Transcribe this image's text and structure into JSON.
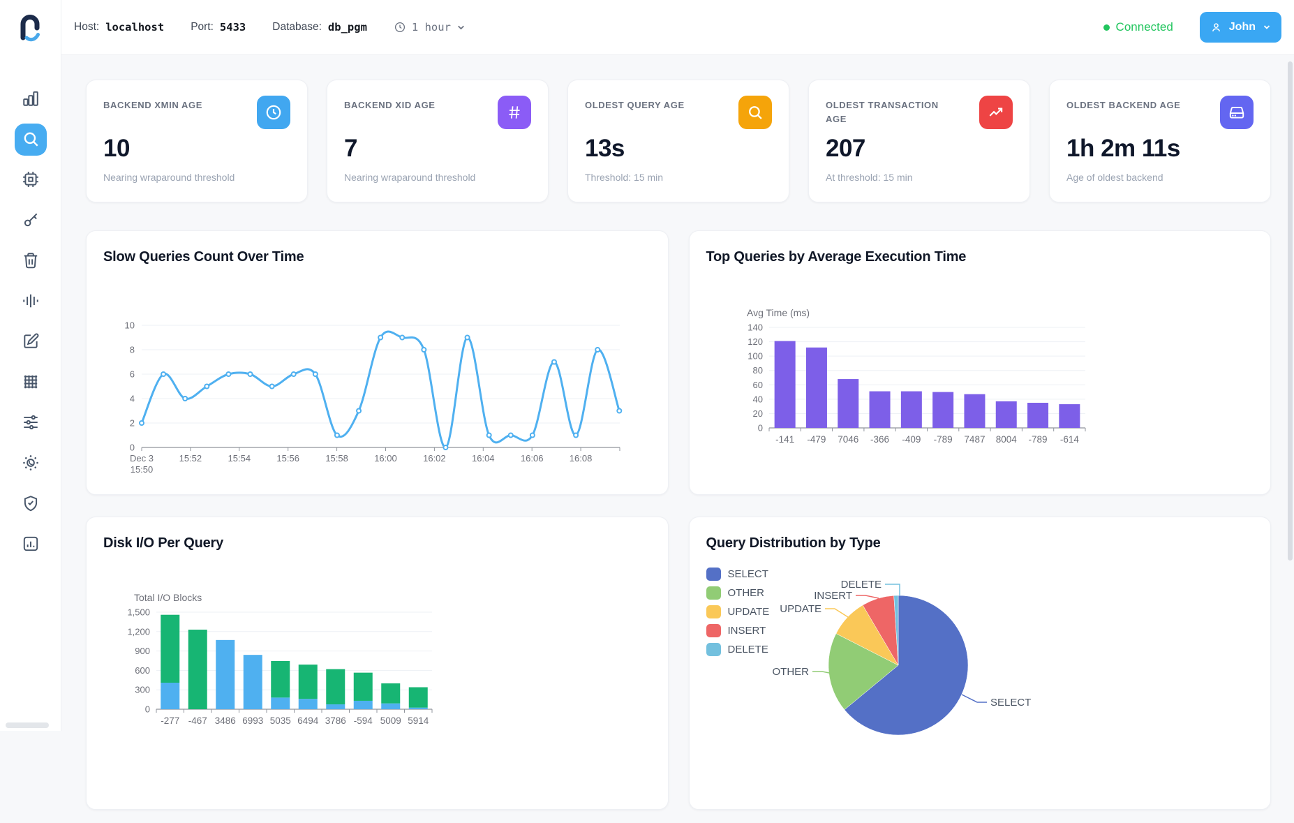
{
  "header": {
    "host_label": "Host:",
    "host_value": "localhost",
    "port_label": "Port:",
    "port_value": "5433",
    "db_label": "Database:",
    "db_value": "db_pgm",
    "time_range": "1 hour",
    "status": "Connected",
    "user": "John"
  },
  "sidebar": {
    "items": [
      {
        "icon": "bar-chart-icon"
      },
      {
        "icon": "search-icon",
        "active": true
      },
      {
        "icon": "cpu-icon"
      },
      {
        "icon": "key-icon"
      },
      {
        "icon": "trash-icon"
      },
      {
        "icon": "audio-lines-icon"
      },
      {
        "icon": "edit-icon"
      },
      {
        "icon": "grid-icon"
      },
      {
        "icon": "sliders-icon"
      },
      {
        "icon": "sun-icon"
      },
      {
        "icon": "shield-check-icon"
      },
      {
        "icon": "chart-square-icon"
      }
    ]
  },
  "stats": {
    "items": [
      {
        "label": "BACKEND XMIN AGE",
        "value": "10",
        "subtitle": "Nearing wraparound threshold",
        "icon": "clock-icon",
        "color": "#41a7f0"
      },
      {
        "label": "BACKEND XID AGE",
        "value": "7",
        "subtitle": "Nearing wraparound threshold",
        "icon": "hash-icon",
        "color": "#8b5cf6"
      },
      {
        "label": "OLDEST QUERY AGE",
        "value": "13s",
        "subtitle": "Threshold: 15 min",
        "icon": "search-icon",
        "color": "#f5a40a"
      },
      {
        "label": "OLDEST TRANSACTION AGE",
        "value": "207",
        "subtitle": "At threshold: 15 min",
        "icon": "trending-up-icon",
        "color": "#ee4444"
      },
      {
        "label": "OLDEST BACKEND AGE",
        "value": "1h 2m 11s",
        "subtitle": "Age of oldest backend",
        "icon": "hard-drive-icon",
        "color": "#6366f1"
      }
    ]
  },
  "chart_data": [
    {
      "type": "line",
      "title": "Slow Queries Count Over Time",
      "series_color": "#4FB0F0",
      "ylim": [
        0,
        10
      ],
      "yticks": [
        0,
        2,
        4,
        6,
        8,
        10
      ],
      "x_tick_labels": [
        "Dec 3\n15:50",
        "15:52",
        "15:54",
        "15:56",
        "15:58",
        "16:00",
        "16:02",
        "16:04",
        "16:06",
        "16:08"
      ],
      "x_tick_minutes": [
        0,
        2,
        4,
        6,
        8,
        10,
        12,
        14,
        16,
        18
      ],
      "x_range_minutes": [
        0,
        19.6
      ],
      "x_step_minutes": 0.89,
      "values": [
        2,
        6,
        4,
        5,
        6,
        6,
        5,
        6,
        6,
        1,
        3,
        9,
        9,
        8,
        0,
        9,
        1,
        1,
        1,
        7,
        1,
        8,
        3
      ],
      "grid": true,
      "legend_position": "none"
    },
    {
      "type": "bar",
      "title": "Top Queries by Average Execution Time",
      "ylabel": "Avg Time (ms)",
      "categories": [
        "-141",
        "-479",
        "7046",
        "-366",
        "-409",
        "-789",
        "7487",
        "8004",
        "-789",
        "-614"
      ],
      "values": [
        121,
        112,
        68,
        51,
        51,
        50,
        47,
        37,
        35,
        33
      ],
      "ylim": [
        0,
        140
      ],
      "ytick_step": 20,
      "bar_color": "#7D5FE8",
      "grid": true
    },
    {
      "type": "bar",
      "stacked": true,
      "title": "Disk I/O Per Query",
      "ylabel": "Total I/O Blocks",
      "categories": [
        "-277",
        "-467",
        "3486",
        "6993",
        "5035",
        "6494",
        "3786",
        "-594",
        "5009",
        "5914"
      ],
      "series": [
        {
          "name": "bottom-blue",
          "color": "#4FB0F0",
          "values": [
            410,
            0,
            1070,
            840,
            180,
            160,
            75,
            130,
            90,
            25
          ]
        },
        {
          "name": "top-green",
          "color": "#17B573",
          "values": [
            1050,
            1230,
            0,
            0,
            565,
            530,
            545,
            435,
            310,
            315
          ]
        }
      ],
      "ylim": [
        0,
        1500
      ],
      "ytick_step": 300,
      "comma_format": true,
      "grid": true
    },
    {
      "type": "pie",
      "title": "Query Distribution by Type",
      "labels": [
        "SELECT",
        "OTHER",
        "UPDATE",
        "INSERT",
        "DELETE"
      ],
      "values_percent": [
        64,
        18.5,
        9,
        7.5,
        1
      ],
      "colors": [
        "#5470C6",
        "#91CC75",
        "#FAC858",
        "#EE6666",
        "#73C0DE"
      ],
      "legend_position": "left",
      "label_layout": [
        {
          "points": [
            [
              91,
              42
            ],
            [
              113,
              53
            ],
            [
              127,
              53
            ]
          ],
          "text_at": [
            132,
            58
          ],
          "anchor": "start"
        },
        {
          "points": [
            [
              -99,
              11
            ],
            [
              -109,
              9
            ],
            [
              -123,
              9
            ]
          ],
          "text_at": [
            -128,
            14
          ],
          "anchor": "end"
        },
        {
          "points": [
            [
              -72,
              -69
            ],
            [
              -91,
              -81
            ],
            [
              -105,
              -81
            ]
          ],
          "text_at": [
            -110,
            -76
          ],
          "anchor": "end"
        },
        {
          "points": [
            [
              -28,
              -96
            ],
            [
              -47,
              -100
            ],
            [
              -61,
              -100
            ]
          ],
          "text_at": [
            -66,
            -95
          ],
          "anchor": "end"
        },
        {
          "points": [
            [
              2,
              -100
            ],
            [
              2,
              -116
            ],
            [
              -19,
              -116
            ]
          ],
          "text_at": [
            -24,
            -111
          ],
          "anchor": "end"
        }
      ]
    }
  ]
}
